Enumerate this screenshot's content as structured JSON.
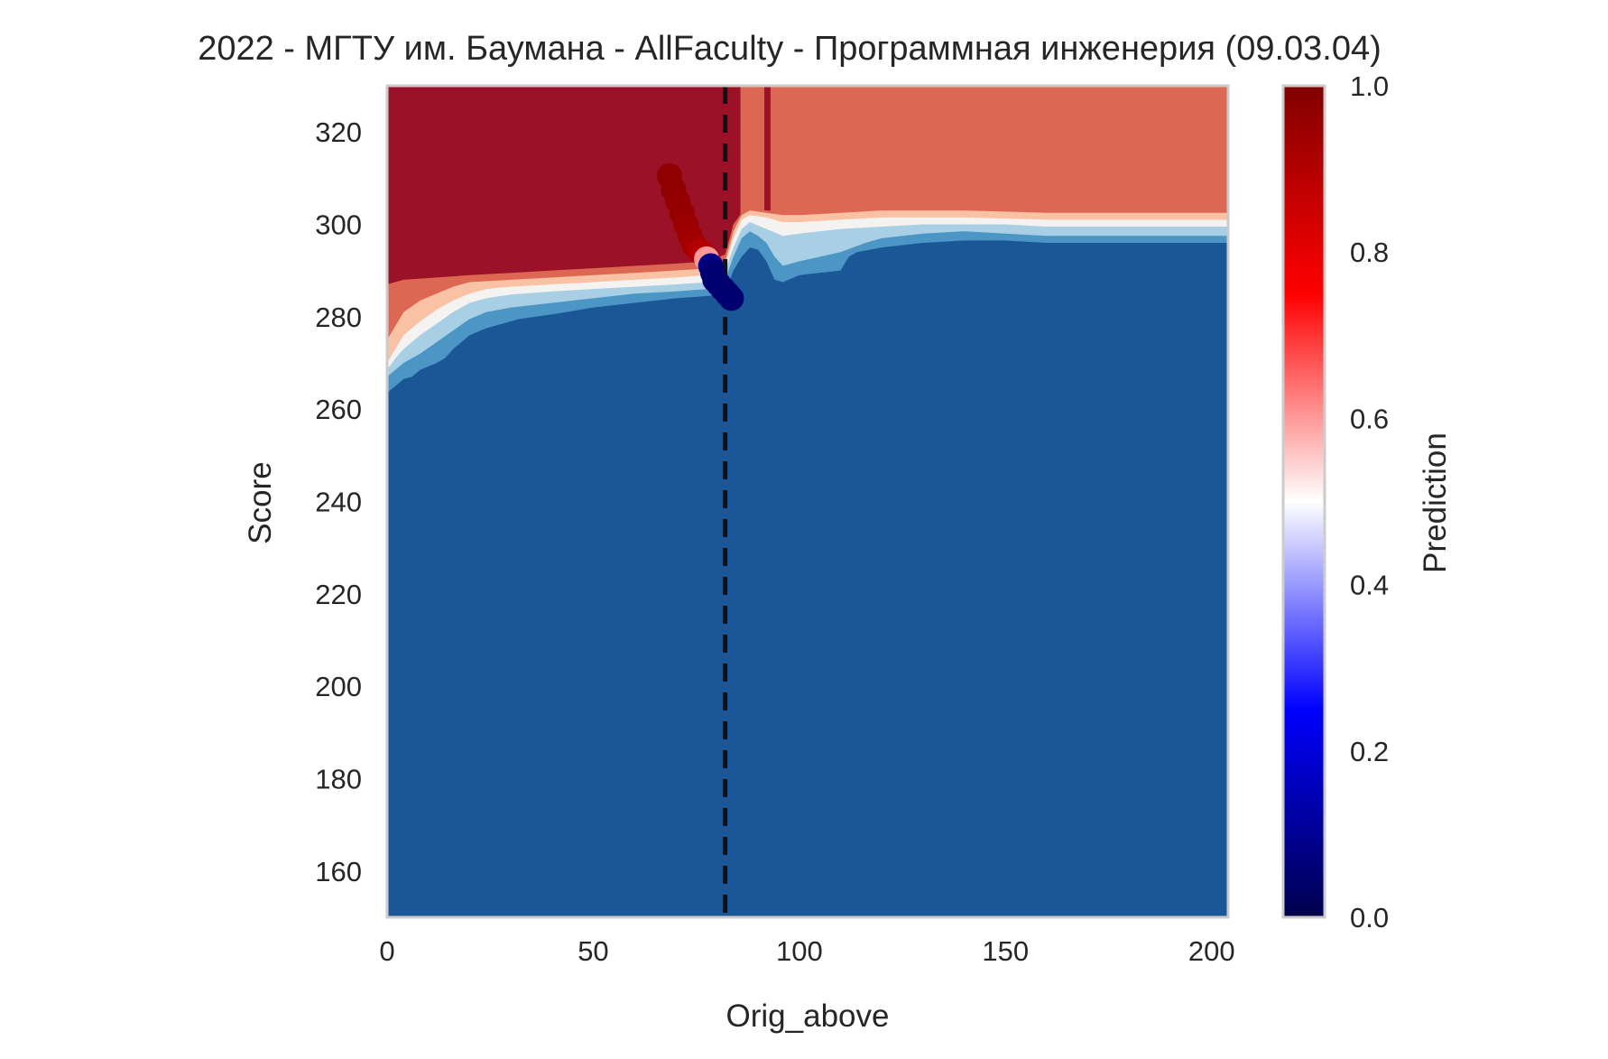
{
  "chart_data": {
    "type": "contour",
    "title": "2022 - МГТУ им. Баумана - AllFaculty - Программная инженерия (09.03.04)",
    "xlabel": "Orig_above",
    "ylabel": "Score",
    "xlim": [
      0,
      204
    ],
    "ylim": [
      150,
      330
    ],
    "xticks": [
      "0",
      "50",
      "100",
      "150",
      "200"
    ],
    "yticks": [
      "160",
      "180",
      "200",
      "220",
      "240",
      "260",
      "280",
      "300",
      "320"
    ],
    "grid": false,
    "vline_x": 82,
    "colorbar": {
      "label": "Prediction",
      "range": [
        0,
        1
      ],
      "ticks": [
        "0.0",
        "0.2",
        "0.4",
        "0.6",
        "0.8",
        "1.0"
      ],
      "colormap": "seismic"
    },
    "contour_colors": {
      "low": "#1b5797",
      "band1": "#4c96c5",
      "band2": "#a9cfe5",
      "band3": "#f5f3f1",
      "band4": "#f9c2a5",
      "band5": "#dc6853",
      "high": "#9b1127"
    },
    "scatter_points": [
      {
        "x": 68.5,
        "y": 310.5,
        "p": 0.97
      },
      {
        "x": 69.5,
        "y": 307.5,
        "p": 0.97
      },
      {
        "x": 70.5,
        "y": 305.0,
        "p": 0.96
      },
      {
        "x": 71.5,
        "y": 302.5,
        "p": 0.96
      },
      {
        "x": 72.5,
        "y": 300.0,
        "p": 0.95
      },
      {
        "x": 73.5,
        "y": 297.5,
        "p": 0.94
      },
      {
        "x": 74.5,
        "y": 295.5,
        "p": 0.93
      },
      {
        "x": 76.0,
        "y": 294.0,
        "p": 0.9
      },
      {
        "x": 77.5,
        "y": 292.5,
        "p": 0.6
      },
      {
        "x": 78.5,
        "y": 291.0,
        "p": 0.08
      },
      {
        "x": 79.0,
        "y": 289.5,
        "p": 0.05
      },
      {
        "x": 79.5,
        "y": 288.0,
        "p": 0.05
      },
      {
        "x": 80.5,
        "y": 287.0,
        "p": 0.05
      },
      {
        "x": 81.5,
        "y": 286.0,
        "p": 0.05
      },
      {
        "x": 82.5,
        "y": 285.0,
        "p": 0.05
      },
      {
        "x": 83.5,
        "y": 284.0,
        "p": 0.05
      }
    ]
  }
}
